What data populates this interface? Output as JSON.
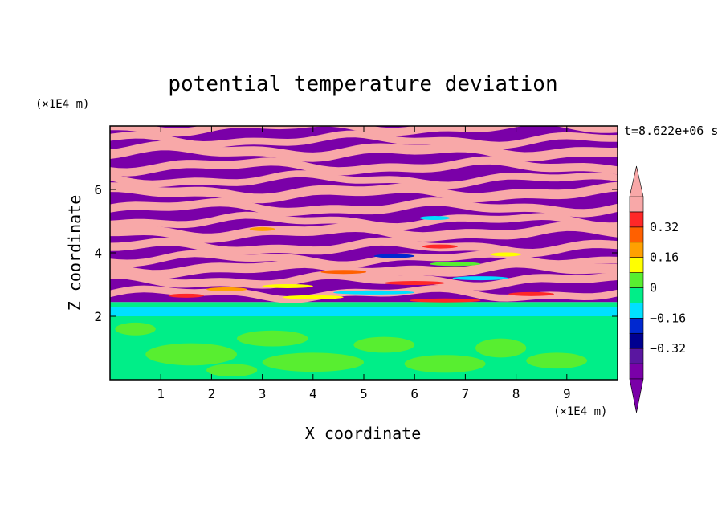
{
  "chart_data": {
    "type": "heatmap",
    "title": "potential temperature deviation",
    "xlabel": "X coordinate",
    "ylabel": "Z coordinate",
    "x_unit": "(×1E4 m)",
    "y_unit": "(×1E4 m)",
    "time_label": "t=8.622e+06 s",
    "xlim": [
      0,
      10
    ],
    "ylim": [
      0,
      8
    ],
    "xticks": [
      1,
      2,
      3,
      4,
      5,
      6,
      7,
      8,
      9
    ],
    "yticks": [
      2,
      4,
      6
    ],
    "colorbar": {
      "levels": [
        -0.48,
        -0.4,
        -0.32,
        -0.24,
        -0.16,
        -0.08,
        0,
        0.08,
        0.16,
        0.24,
        0.32,
        0.4,
        0.48
      ],
      "labels": [
        "0.32",
        "0.16",
        "0",
        "−0.16",
        "−0.32"
      ],
      "label_values": [
        0.32,
        0.16,
        0,
        -0.16,
        -0.32
      ],
      "colors": [
        "#7a00a8",
        "#5a16a0",
        "#000090",
        "#0028d0",
        "#00e0ff",
        "#00ee88",
        "#58ee30",
        "#ffff00",
        "#ffa000",
        "#ff6000",
        "#ff2828",
        "#f8a8a8"
      ],
      "extend": "both"
    },
    "field_description_layers": [
      {
        "z_range": [
          0,
          2
        ],
        "dominant_levels": [
          0,
          0.08
        ]
      },
      {
        "z_range": [
          2,
          3
        ],
        "dominant_levels": [
          -0.16,
          0.16,
          0.32
        ]
      },
      {
        "z_range": [
          3,
          8
        ],
        "dominant_levels": [
          -0.48,
          0.48
        ]
      }
    ]
  }
}
